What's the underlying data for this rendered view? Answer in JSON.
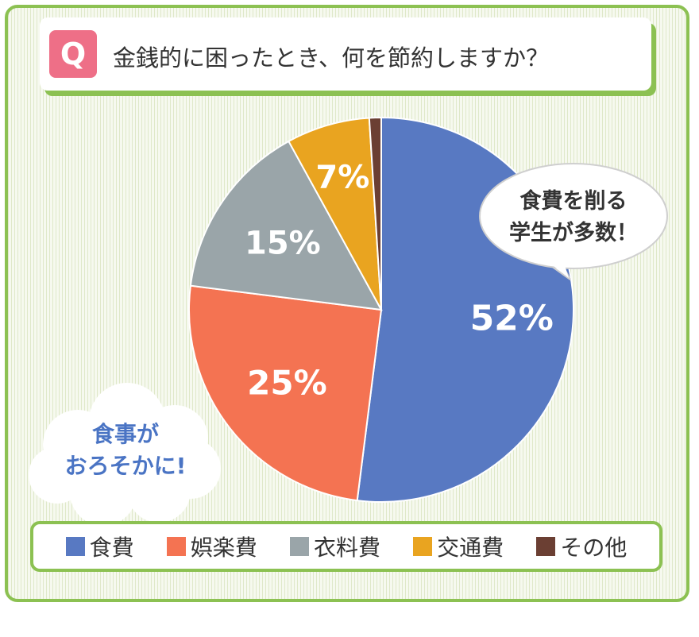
{
  "title": "金銭的に困ったとき、何を節約しますか？",
  "badge": "Q",
  "colors": {
    "frame": "#8cc152",
    "badge": "#ee6f87",
    "callout_text": "#4a74c4"
  },
  "chart_data": {
    "type": "pie",
    "title": "金銭的に困ったとき、何を節約しますか？",
    "start_angle_deg": 0,
    "direction": "clockwise",
    "slices": [
      {
        "name": "食費",
        "value": 52,
        "label": "52%",
        "color": "#5879c2"
      },
      {
        "name": "娯楽費",
        "value": 25,
        "label": "25%",
        "color": "#f47352"
      },
      {
        "name": "衣料費",
        "value": 15,
        "label": "15%",
        "color": "#9aa5a9"
      },
      {
        "name": "交通費",
        "value": 7,
        "label": "7%",
        "color": "#e9a420"
      },
      {
        "name": "その他",
        "value": 1,
        "label": "",
        "color": "#6b3f33"
      }
    ],
    "legend_position": "bottom",
    "annotations": [
      {
        "lines": [
          "食費を削る",
          "学生が多数！"
        ],
        "style": "speech-bubble"
      },
      {
        "lines": [
          "食事が",
          "おろそかに!"
        ],
        "style": "cloud"
      }
    ]
  }
}
